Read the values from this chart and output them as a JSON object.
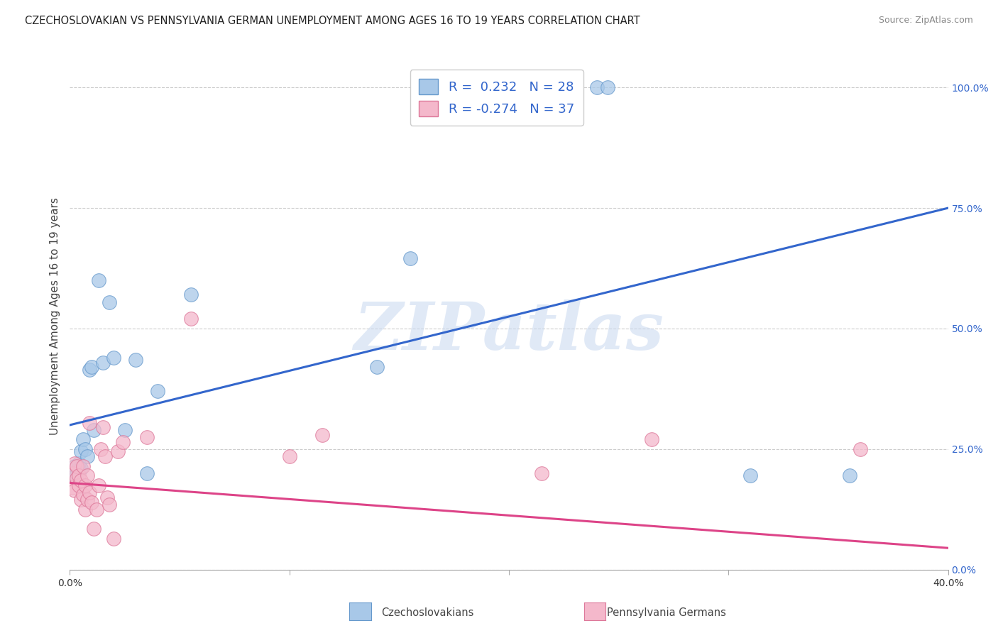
{
  "title": "CZECHOSLOVAKIAN VS PENNSYLVANIA GERMAN UNEMPLOYMENT AMONG AGES 16 TO 19 YEARS CORRELATION CHART",
  "source": "Source: ZipAtlas.com",
  "ylabel": "Unemployment Among Ages 16 to 19 years",
  "xmin": 0.0,
  "xmax": 0.4,
  "ymin": 0.0,
  "ymax": 1.05,
  "right_yticks": [
    0.0,
    0.25,
    0.5,
    0.75,
    1.0
  ],
  "right_yticklabels": [
    "0.0%",
    "25.0%",
    "50.0%",
    "75.0%",
    "100.0%"
  ],
  "xticks": [
    0.0,
    0.1,
    0.2,
    0.3,
    0.4
  ],
  "xticklabels": [
    "0.0%",
    "",
    "",
    "",
    "40.0%"
  ],
  "czech_color": "#a8c8e8",
  "czech_color_edge": "#6699cc",
  "penn_color": "#f4b8cb",
  "penn_color_edge": "#dd7799",
  "czech_R": 0.232,
  "czech_N": 28,
  "penn_R": -0.274,
  "penn_N": 37,
  "czech_line_color": "#3366cc",
  "penn_line_color": "#dd4488",
  "watermark": "ZIPatlas",
  "watermark_color": "#c8d8f0",
  "czech_line_x0": 0.0,
  "czech_line_y0": 0.3,
  "czech_line_x1": 0.4,
  "czech_line_y1": 0.75,
  "penn_line_x0": 0.0,
  "penn_line_y0": 0.18,
  "penn_line_x1": 0.4,
  "penn_line_y1": 0.045,
  "czech_scatter_x": [
    0.001,
    0.002,
    0.003,
    0.004,
    0.004,
    0.005,
    0.005,
    0.006,
    0.007,
    0.008,
    0.009,
    0.01,
    0.011,
    0.013,
    0.015,
    0.018,
    0.02,
    0.025,
    0.03,
    0.035,
    0.04,
    0.055,
    0.14,
    0.155,
    0.24,
    0.245,
    0.31,
    0.355
  ],
  "czech_scatter_y": [
    0.195,
    0.215,
    0.2,
    0.21,
    0.22,
    0.245,
    0.21,
    0.27,
    0.25,
    0.235,
    0.415,
    0.42,
    0.29,
    0.6,
    0.43,
    0.555,
    0.44,
    0.29,
    0.435,
    0.2,
    0.37,
    0.57,
    0.42,
    0.645,
    1.0,
    1.0,
    0.195,
    0.195
  ],
  "penn_scatter_x": [
    0.001,
    0.001,
    0.002,
    0.002,
    0.003,
    0.003,
    0.004,
    0.004,
    0.005,
    0.005,
    0.006,
    0.006,
    0.007,
    0.007,
    0.008,
    0.008,
    0.009,
    0.009,
    0.01,
    0.011,
    0.012,
    0.013,
    0.014,
    0.015,
    0.016,
    0.017,
    0.018,
    0.02,
    0.022,
    0.024,
    0.035,
    0.055,
    0.1,
    0.115,
    0.215,
    0.265,
    0.36
  ],
  "penn_scatter_y": [
    0.2,
    0.17,
    0.22,
    0.165,
    0.19,
    0.215,
    0.175,
    0.195,
    0.185,
    0.145,
    0.215,
    0.155,
    0.175,
    0.125,
    0.195,
    0.145,
    0.305,
    0.16,
    0.14,
    0.085,
    0.125,
    0.175,
    0.25,
    0.295,
    0.235,
    0.15,
    0.135,
    0.065,
    0.245,
    0.265,
    0.275,
    0.52,
    0.235,
    0.28,
    0.2,
    0.27,
    0.25
  ],
  "grid_color": "#cccccc",
  "background_color": "#ffffff",
  "title_fontsize": 10.5,
  "axis_label_fontsize": 11,
  "tick_fontsize": 10,
  "legend_fontsize": 13,
  "source_fontsize": 9
}
